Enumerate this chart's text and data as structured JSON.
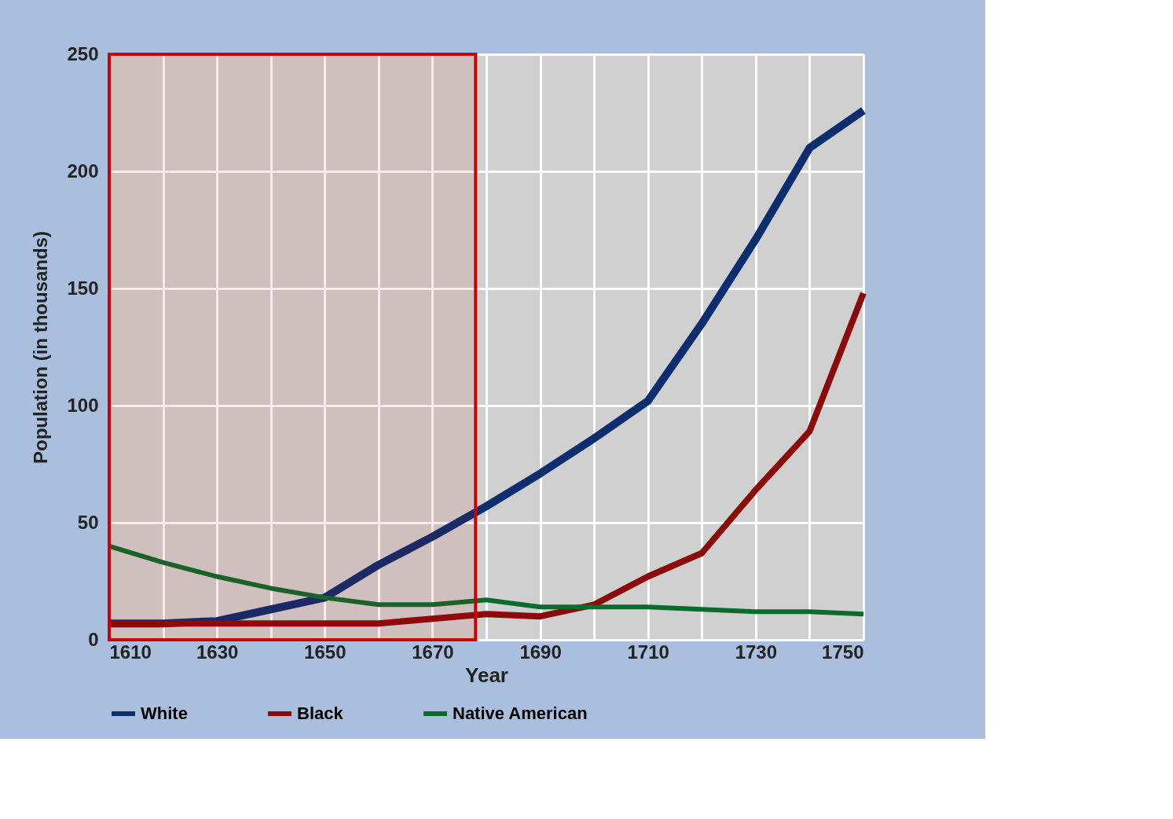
{
  "chart_data": {
    "type": "line",
    "xlabel": "Year",
    "ylabel": "Population (in thousands)",
    "x": [
      1610,
      1620,
      1630,
      1640,
      1650,
      1660,
      1670,
      1680,
      1690,
      1700,
      1710,
      1720,
      1730,
      1740,
      1750
    ],
    "series": [
      {
        "name": "White",
        "color": "#0d2e6e",
        "values": [
          7,
          7,
          8,
          13,
          18,
          32,
          44,
          57,
          71,
          86,
          102,
          135,
          171,
          210,
          226
        ]
      },
      {
        "name": "Black",
        "color": "#8b0a0a",
        "values": [
          7,
          7,
          7,
          7,
          7,
          7,
          9,
          11,
          10,
          15,
          27,
          37,
          64,
          89,
          148
        ]
      },
      {
        "name": "Native American",
        "color": "#0b6b2c",
        "values": [
          40,
          33,
          27,
          22,
          18,
          15,
          15,
          17,
          14,
          14,
          14,
          13,
          12,
          12,
          11
        ]
      }
    ],
    "xlim": [
      1610,
      1750
    ],
    "xticks": [
      1610,
      {
        "value": 1620,
        "label": null
      },
      1630,
      {
        "value": 1640,
        "label": null
      },
      1650,
      {
        "value": 1660,
        "label": null
      },
      1670,
      {
        "value": 1680,
        "label": null
      },
      1690,
      {
        "value": 1700,
        "label": null
      },
      1710,
      {
        "value": 1720,
        "label": null
      },
      1730,
      {
        "value": 1740,
        "label": null
      },
      1750
    ],
    "ylim": [
      0,
      250
    ],
    "yticks": [
      0,
      50,
      100,
      150,
      200,
      250
    ],
    "grid": true,
    "legend": "bottom",
    "line_style": "solid",
    "bands": [
      {
        "axis": "x",
        "from": 1610,
        "to": 1678,
        "color": "#cc0000"
      }
    ]
  }
}
